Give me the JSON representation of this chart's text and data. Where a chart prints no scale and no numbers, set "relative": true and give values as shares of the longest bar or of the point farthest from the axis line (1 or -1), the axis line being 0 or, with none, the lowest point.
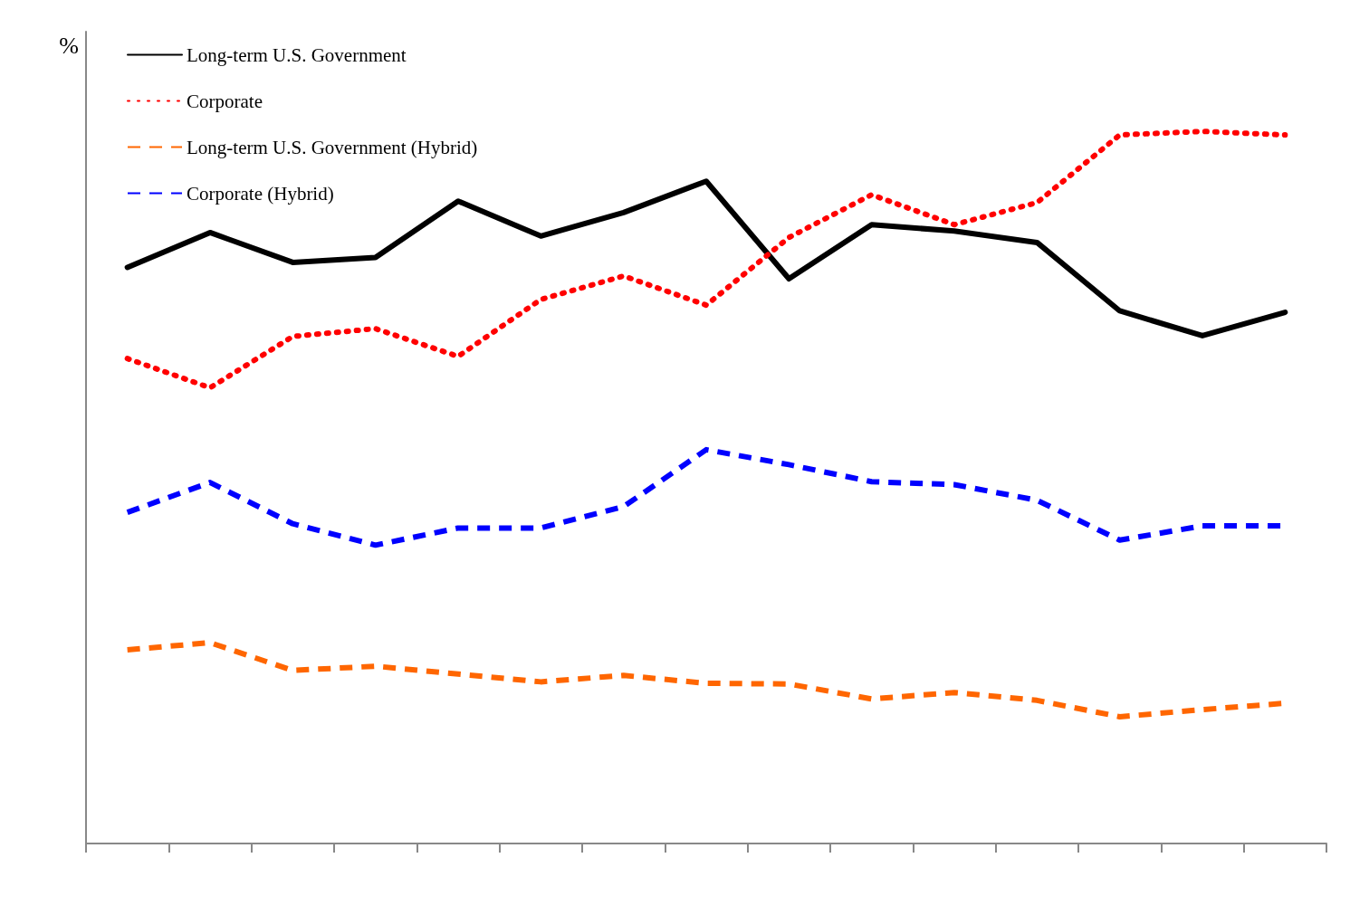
{
  "chart_data": {
    "type": "line",
    "relative": true,
    "ylabel": "%",
    "legend": "top left",
    "marker": "none",
    "grid": false,
    "categories": [
      null,
      null,
      null,
      null,
      null,
      null,
      null,
      null,
      null,
      null,
      null,
      null,
      null,
      null,
      null
    ],
    "series": [
      {
        "name": "Long-term U.S. Government",
        "color": "#000000",
        "line_style": "solid",
        "values": [
          0.809,
          0.858,
          0.816,
          0.823,
          0.902,
          0.853,
          0.886,
          0.93,
          0.793,
          0.869,
          0.86,
          0.844,
          0.748,
          0.713,
          0.746
        ]
      },
      {
        "name": "Corporate",
        "color": "#ff0000",
        "line_style": "dotted",
        "values": [
          0.681,
          0.64,
          0.712,
          0.723,
          0.684,
          0.764,
          0.797,
          0.756,
          0.851,
          0.911,
          0.869,
          0.9,
          0.995,
          1,
          0.995
        ]
      },
      {
        "name": "Long-term U.S. Government (Hybrid)",
        "color": "#ff6600",
        "line_style": "dashed",
        "values": [
          0.272,
          0.282,
          0.243,
          0.249,
          0.238,
          0.227,
          0.236,
          0.225,
          0.224,
          0.203,
          0.212,
          0.201,
          0.178,
          0.188,
          0.197
        ]
      },
      {
        "name": "Corporate (Hybrid)",
        "color": "#0000ff",
        "line_style": "dashed",
        "values": [
          0.465,
          0.507,
          0.449,
          0.419,
          0.443,
          0.443,
          0.473,
          0.553,
          0.532,
          0.508,
          0.504,
          0.482,
          0.426,
          0.446,
          0.446
        ]
      }
    ]
  }
}
